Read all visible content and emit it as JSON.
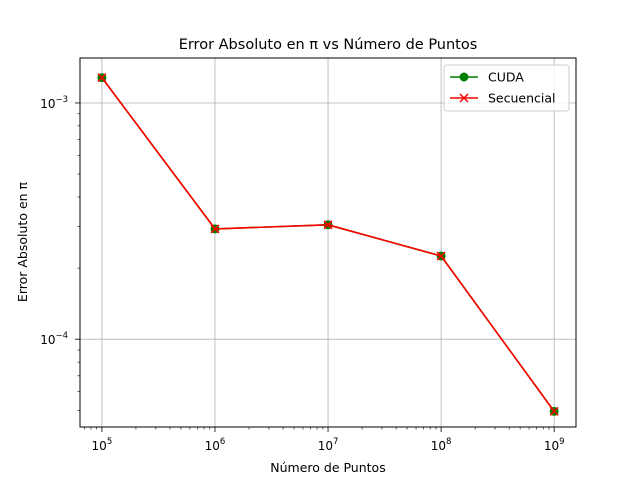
{
  "chart_data": {
    "type": "line",
    "title": "Error Absoluto en π vs Número de Puntos",
    "xlabel": "Número de Puntos",
    "ylabel": "Error Absoluto en π",
    "xscale": "log",
    "yscale": "log",
    "x": [
      100000,
      1000000,
      10000000,
      100000000,
      1000000000
    ],
    "series": [
      {
        "name": "CUDA",
        "values": [
          0.00128,
          0.000293,
          0.000305,
          0.000225,
          4.95e-05
        ],
        "color": "#008000",
        "marker": "circle"
      },
      {
        "name": "Secuencial",
        "values": [
          0.00128,
          0.000293,
          0.000305,
          0.000225,
          4.95e-05
        ],
        "color": "#ff0000",
        "marker": "x"
      }
    ],
    "xlim": [
      64000,
      1560000000
    ],
    "ylim": [
      4.25e-05,
      0.00155
    ],
    "xticks": [
      {
        "value": 100000,
        "base": "10",
        "exp": "5"
      },
      {
        "value": 1000000,
        "base": "10",
        "exp": "6"
      },
      {
        "value": 10000000,
        "base": "10",
        "exp": "7"
      },
      {
        "value": 100000000,
        "base": "10",
        "exp": "8"
      },
      {
        "value": 1000000000,
        "base": "10",
        "exp": "9"
      }
    ],
    "yticks": [
      {
        "value": 0.001,
        "base": "10",
        "exp": "−3"
      },
      {
        "value": 0.0001,
        "base": "10",
        "exp": "−4"
      }
    ],
    "grid": true,
    "legend_position": "top-right"
  }
}
